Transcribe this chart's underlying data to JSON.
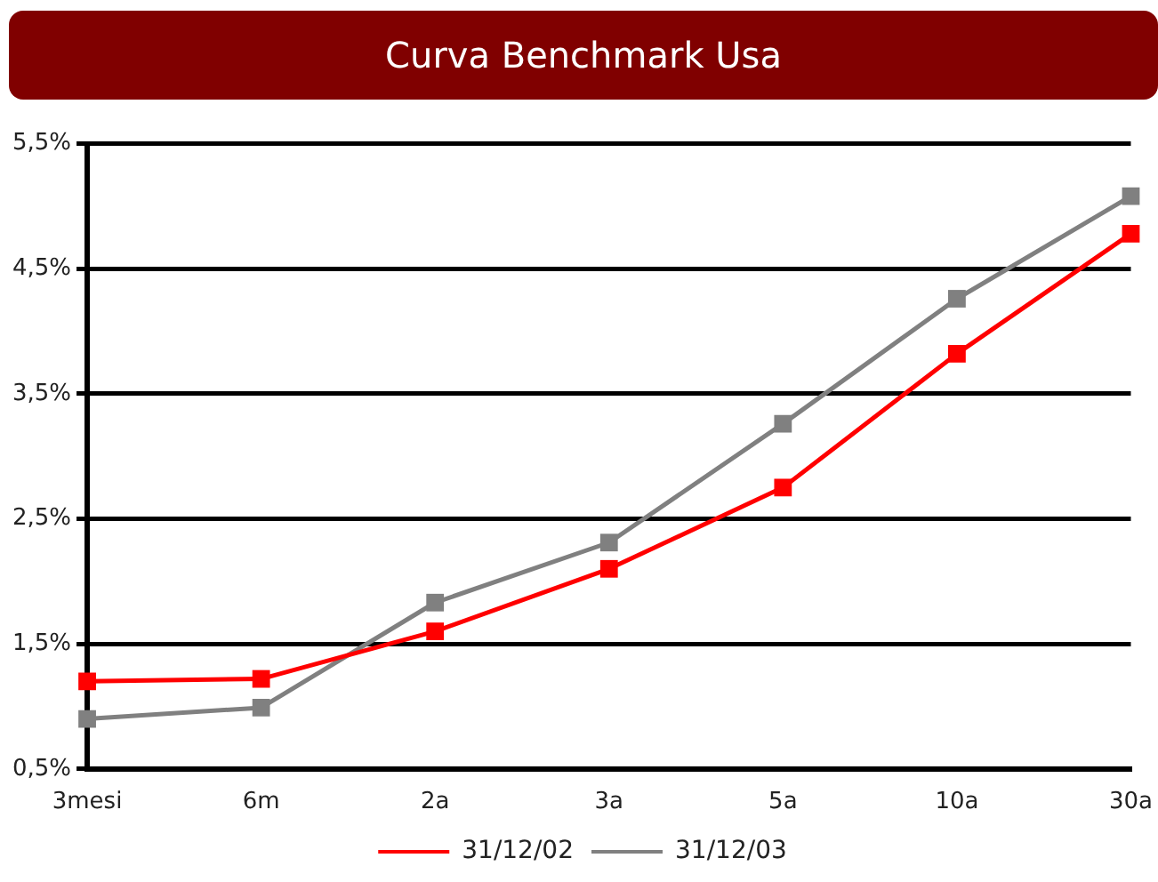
{
  "chart_data": {
    "type": "line",
    "title": "Curva Benchmark Usa",
    "categories": [
      "3mesi",
      "6m",
      "2a",
      "3a",
      "5a",
      "10a",
      "30a"
    ],
    "series": [
      {
        "name": "31/12/02",
        "color": "#ff0000",
        "values": [
          1.2,
          1.22,
          1.6,
          2.1,
          2.75,
          3.82,
          4.78
        ]
      },
      {
        "name": "31/12/03",
        "color": "#808080",
        "values": [
          0.9,
          0.99,
          1.83,
          2.31,
          3.26,
          4.26,
          5.08
        ]
      }
    ],
    "ylim": [
      0.5,
      5.5
    ],
    "yticks": [
      {
        "value": 0.5,
        "label": "0,5%"
      },
      {
        "value": 1.5,
        "label": "1,5%"
      },
      {
        "value": 2.5,
        "label": "2,5%"
      },
      {
        "value": 3.5,
        "label": "3,5%"
      },
      {
        "value": 4.5,
        "label": "4,5%"
      },
      {
        "value": 5.5,
        "label": "5,5%"
      }
    ],
    "grid": "y",
    "legend": "bottom",
    "marker": "square",
    "line_style": "solid"
  }
}
